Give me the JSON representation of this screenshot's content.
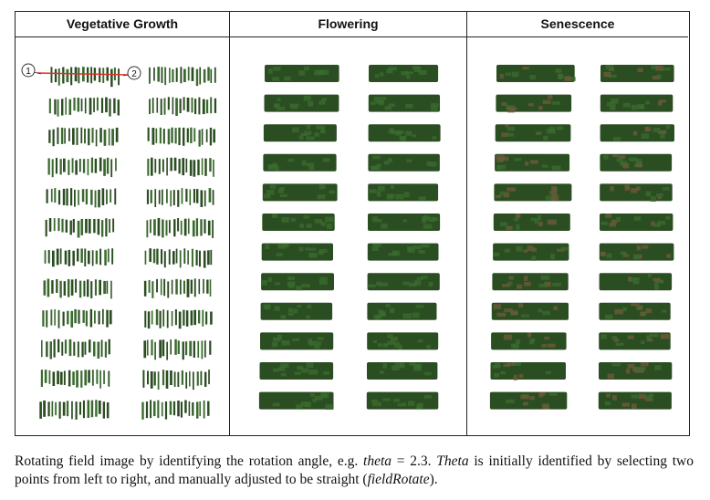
{
  "panels": [
    {
      "title": "Vegetative Growth",
      "plot_rows_per_column": 12,
      "plot_columns": 2
    },
    {
      "title": "Flowering",
      "plot_rows_per_column": 12,
      "plot_columns": 2
    },
    {
      "title": "Senescence",
      "plot_rows_per_column": 12,
      "plot_columns": 2
    }
  ],
  "markers": {
    "point_1": "1",
    "point_2": "2"
  },
  "colors": {
    "plant_dark": "#2b4d22",
    "plant_mid": "#3a6a2e",
    "senescence_brown": "#6b5a3a",
    "rotation_line": "#e0302a"
  },
  "caption": {
    "part1": "Rotating field image by identifying the rotation angle, e.g. ",
    "theta_lower": "theta",
    "part2": " = 2.3. ",
    "theta_upper": "Theta",
    "part3": " is initially identified by selecting two points from left to right, and manually adjusted to be straight (",
    "function_name": "fieldRotate",
    "part4": ")."
  }
}
